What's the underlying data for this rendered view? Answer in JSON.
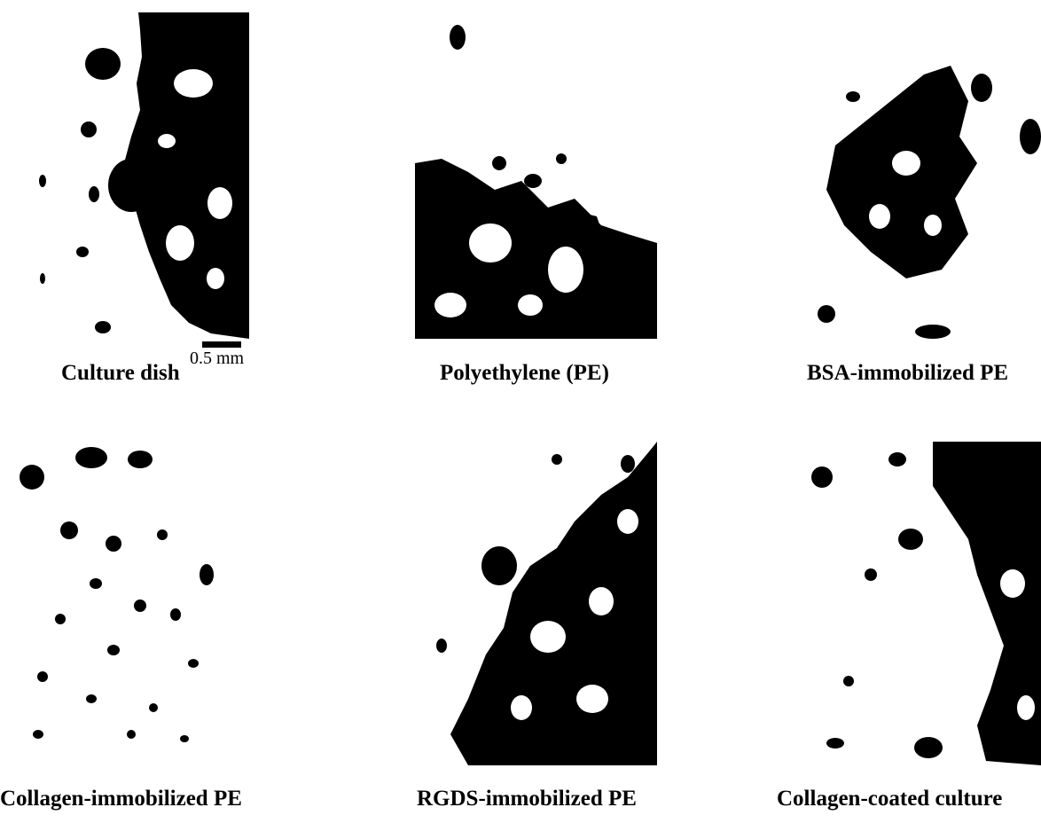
{
  "figure": {
    "scale_bar_label": "0.5 mm",
    "panels": [
      {
        "id": "culture-dish",
        "caption": "Culture dish"
      },
      {
        "id": "polyethylene",
        "caption": "Polyethylene (PE)"
      },
      {
        "id": "bsa-immobilized",
        "caption": "BSA-immobilized PE"
      },
      {
        "id": "collagen-immobilized",
        "caption": "Collagen-immobilized PE"
      },
      {
        "id": "rgds-immobilized",
        "caption": "RGDS-immobilized PE"
      },
      {
        "id": "collagen-coated",
        "caption": "Collagen-coated culture"
      }
    ]
  },
  "colors": {
    "ink": "#000000",
    "paper": "#ffffff"
  }
}
